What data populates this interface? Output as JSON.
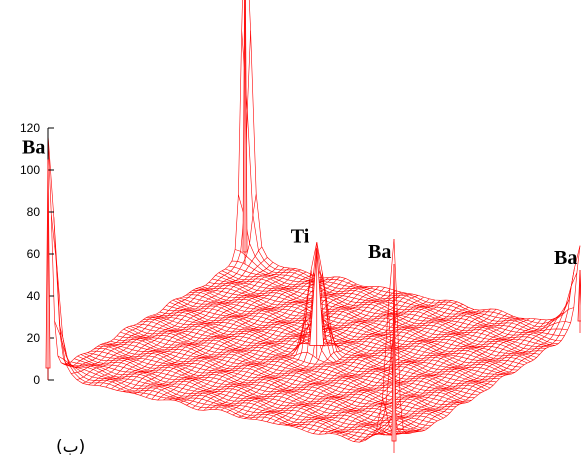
{
  "chart_data": {
    "type": "surface",
    "title": "",
    "xlabel": "",
    "ylabel": "",
    "zlabel": "",
    "zlim": [
      0,
      120
    ],
    "z_ticks": [
      0,
      20,
      40,
      60,
      80,
      100,
      120
    ],
    "surface_color": "#ff0000",
    "grid": false,
    "legend": "none",
    "peaks": [
      {
        "label": "Ba",
        "height": 160,
        "position": "back corner"
      },
      {
        "label": "Ba",
        "height": 105,
        "position": "left corner"
      },
      {
        "label": "Ba",
        "height": 90,
        "position": "front corner"
      },
      {
        "label": "Ba",
        "height": 30,
        "position": "right corner"
      },
      {
        "label": "Ti",
        "height": 52,
        "position": "center"
      }
    ],
    "caption": "(ب)"
  }
}
